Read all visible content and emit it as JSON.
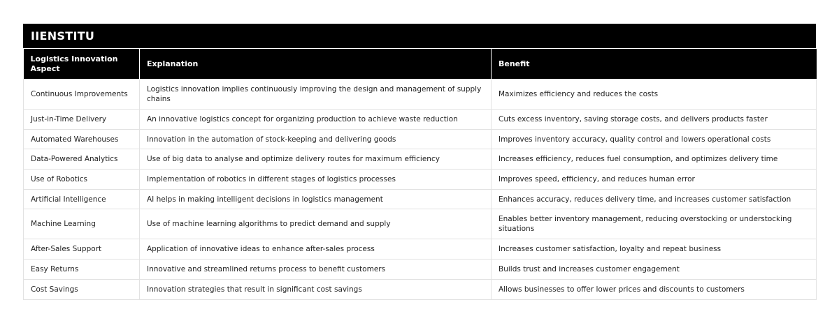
{
  "brand": "IIENSTITU",
  "table": {
    "headers": [
      "Logistics Innovation Aspect",
      "Explanation",
      "Benefit"
    ],
    "rows": [
      [
        "Continuous Improvements",
        "Logistics innovation implies continuously improving the design and management of supply chains",
        "Maximizes efficiency and reduces the costs"
      ],
      [
        "Just-in-Time Delivery",
        "An innovative logistics concept for organizing production to achieve waste reduction",
        "Cuts excess inventory, saving storage costs, and delivers products faster"
      ],
      [
        "Automated Warehouses",
        "Innovation in the automation of stock-keeping and delivering goods",
        "Improves inventory accuracy, quality control and lowers operational costs"
      ],
      [
        "Data-Powered Analytics",
        "Use of big data to analyse and optimize delivery routes for maximum efficiency",
        "Increases efficiency, reduces fuel consumption, and optimizes delivery time"
      ],
      [
        "Use of Robotics",
        "Implementation of robotics in different stages of logistics processes",
        "Improves speed, efficiency, and reduces human error"
      ],
      [
        "Artificial Intelligence",
        "AI helps in making intelligent decisions in logistics management",
        "Enhances accuracy, reduces delivery time, and increases customer satisfaction"
      ],
      [
        "Machine Learning",
        "Use of machine learning algorithms to predict demand and supply",
        "Enables better inventory management, reducing overstocking or understocking situations"
      ],
      [
        "After-Sales Support",
        "Application of innovative ideas to enhance after-sales process",
        "Increases customer satisfaction, loyalty and repeat business"
      ],
      [
        "Easy Returns",
        "Innovative and streamlined returns process to benefit customers",
        "Builds trust and increases customer engagement"
      ],
      [
        "Cost Savings",
        "Innovation strategies that result in significant cost savings",
        "Allows businesses to offer lower prices and discounts to customers"
      ]
    ]
  }
}
